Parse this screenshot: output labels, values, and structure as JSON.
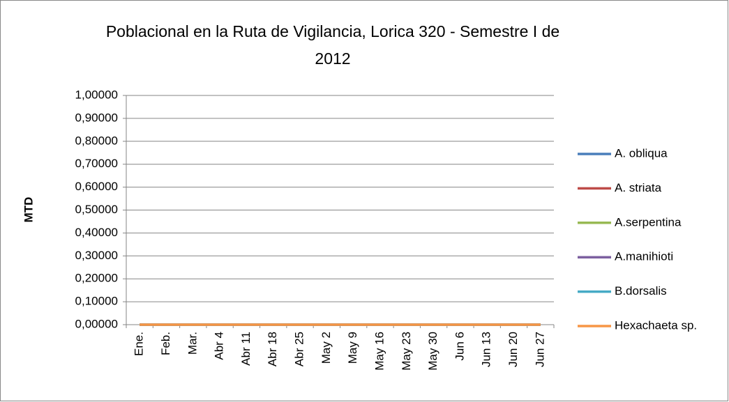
{
  "chart_data": {
    "type": "line",
    "title": [
      "Poblacional  en la Ruta de Vigilancia, Lorica 320 - Semestre I de",
      "2012"
    ],
    "y_label": "MTD",
    "categories": [
      "Ene.",
      "Feb.",
      "Mar.",
      "Abr 4",
      "Abr 11",
      "Abr 18",
      "Abr 25",
      "May 2",
      "May 9",
      "May 16",
      "May 23",
      "May 30",
      "Jun 6",
      "Jun 13",
      "Jun 20",
      "Jun 27"
    ],
    "series": [
      {
        "name": "A. obliqua",
        "color": "#4a7ebb",
        "values": [
          0,
          0,
          0,
          0,
          0,
          0,
          0,
          0,
          0,
          0,
          0,
          0,
          0,
          0,
          0,
          0
        ]
      },
      {
        "name": "A. striata",
        "color": "#be4b48",
        "values": [
          0,
          0,
          0,
          0,
          0,
          0,
          0,
          0,
          0,
          0,
          0,
          0,
          0,
          0,
          0,
          0
        ]
      },
      {
        "name": "A.serpentina",
        "color": "#98b954",
        "values": [
          0,
          0,
          0,
          0,
          0,
          0,
          0,
          0,
          0,
          0,
          0,
          0,
          0,
          0,
          0,
          0
        ]
      },
      {
        "name": "A.manihioti",
        "color": "#7d60a0",
        "values": [
          0,
          0,
          0,
          0,
          0,
          0,
          0,
          0,
          0,
          0,
          0,
          0,
          0,
          0,
          0,
          0
        ]
      },
      {
        "name": "B.dorsalis",
        "color": "#46aac5",
        "values": [
          0,
          0,
          0,
          0,
          0,
          0,
          0,
          0,
          0,
          0,
          0,
          0,
          0,
          0,
          0,
          0
        ]
      },
      {
        "name": "Hexachaeta sp.",
        "color": "#f79646",
        "values": [
          0,
          0,
          0,
          0,
          0,
          0,
          0,
          0,
          0,
          0,
          0,
          0,
          0,
          0,
          0,
          0
        ]
      }
    ],
    "ylim": [
      0,
      1
    ],
    "yticks": [
      {
        "value": 0,
        "label": "0,00000"
      },
      {
        "value": 0.1,
        "label": "0,10000"
      },
      {
        "value": 0.2,
        "label": "0,20000"
      },
      {
        "value": 0.3,
        "label": "0,30000"
      },
      {
        "value": 0.4,
        "label": "0,40000"
      },
      {
        "value": 0.5,
        "label": "0,50000"
      },
      {
        "value": 0.6,
        "label": "0,60000"
      },
      {
        "value": 0.7,
        "label": "0,70000"
      },
      {
        "value": 0.8,
        "label": "0,80000"
      },
      {
        "value": 0.9,
        "label": "0,90000"
      },
      {
        "value": 1,
        "label": "1,00000"
      }
    ],
    "grid": true,
    "legend": "right"
  }
}
